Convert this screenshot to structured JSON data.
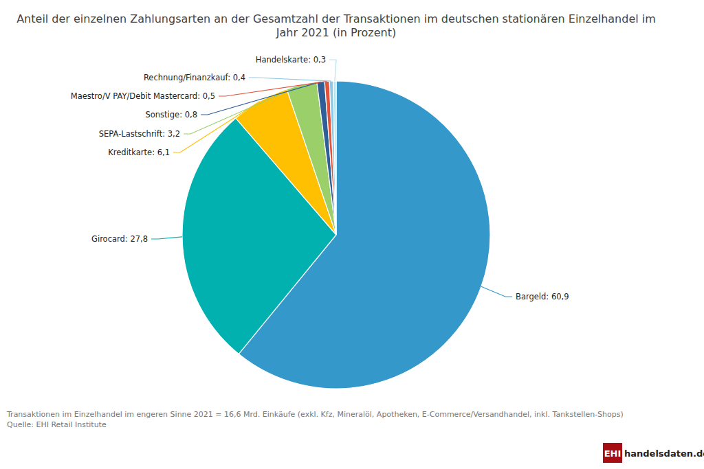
{
  "chart_data": {
    "type": "pie",
    "title": "Anteil der einzelnen Zahlungsarten an der Gesamtzahl der Transaktionen im deutschen stationären Einzelhandel im Jahr 2021 (in Prozent)",
    "categories": [
      "Bargeld",
      "Girocard",
      "Kreditkarte",
      "SEPA-Lastschrift",
      "Sonstige",
      "Maestro/V PAY/Debit Mastercard",
      "Rechnung/Finanzkauf",
      "Handelskarte"
    ],
    "values": [
      60.9,
      27.8,
      6.1,
      3.2,
      0.8,
      0.5,
      0.4,
      0.3
    ],
    "value_labels": [
      "60,9",
      "27,8",
      "6,1",
      "3,2",
      "0,8",
      "0,5",
      "0,4",
      "0,3"
    ],
    "colors": [
      "#3498cb",
      "#00b1b0",
      "#fec000",
      "#9bcf6a",
      "#2f5f96",
      "#e2533c",
      "#8ecae6",
      "#b3e5ec"
    ],
    "data_labels": true,
    "annotations": [
      "Transaktionen im Einzelhandel im engeren Sinne 2021 = 16,6 Mrd. Einkäufe (exkl. Kfz, Mineralöl, Apotheken, E-Commerce/Versandhandel, inkl. Tankstellen-Shops)",
      "Quelle: EHI Retail Institute",
      "EHI",
      "handelsdaten.de"
    ]
  }
}
